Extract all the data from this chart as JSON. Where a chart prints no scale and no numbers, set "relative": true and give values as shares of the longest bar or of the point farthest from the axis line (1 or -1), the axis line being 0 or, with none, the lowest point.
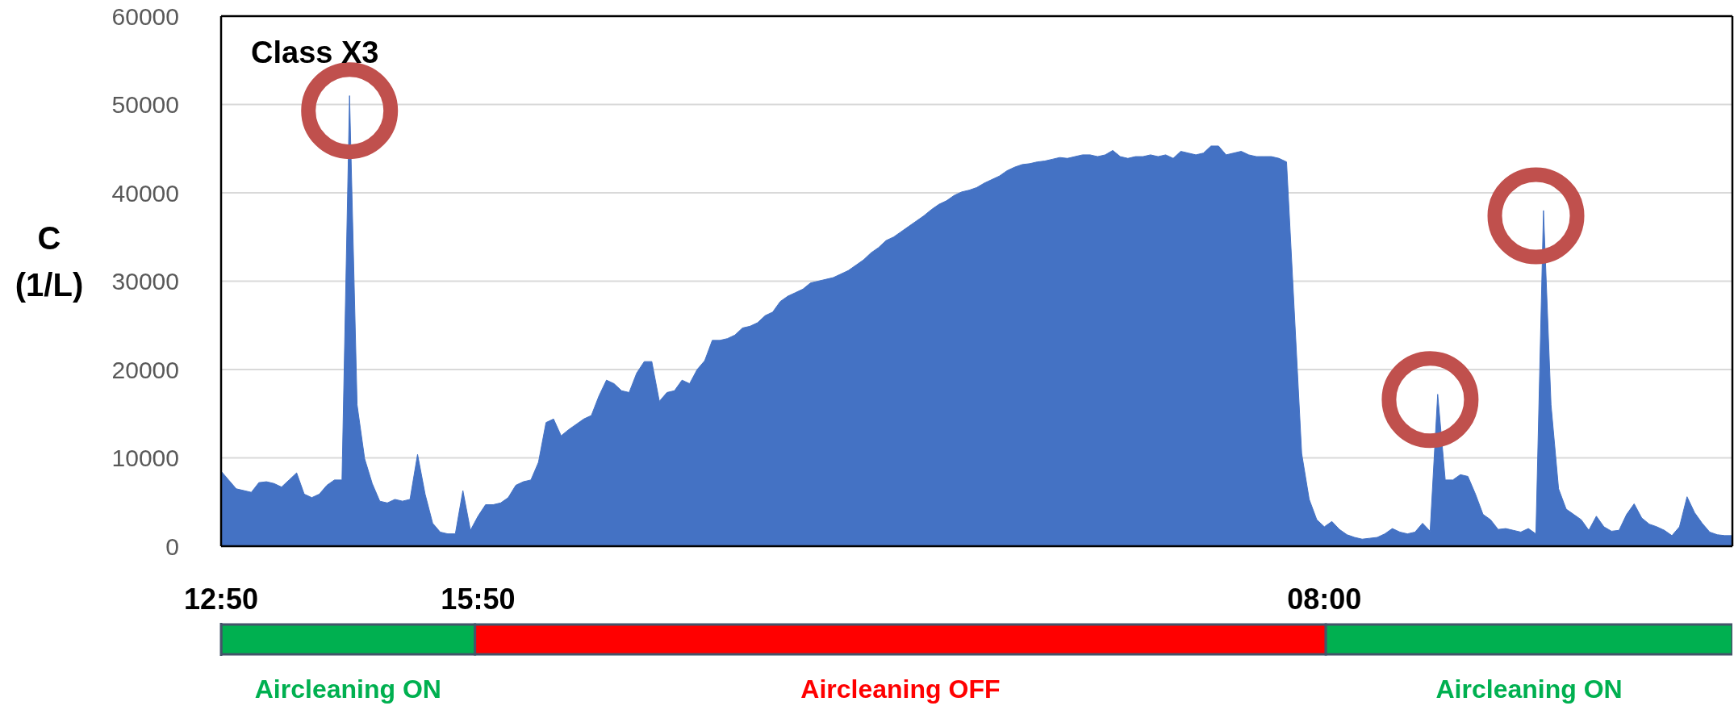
{
  "chart_data": [
    {
      "type": "area",
      "title": "Class X3",
      "ylabel": "C\n(1/L)",
      "categories": [
        "12:50",
        null,
        null,
        null,
        null,
        null,
        null,
        null,
        null,
        null,
        null,
        null,
        null,
        null,
        null,
        null,
        null,
        null,
        null,
        null,
        null,
        null,
        null,
        null,
        null,
        null,
        null,
        null,
        null,
        null,
        null,
        null,
        null,
        null,
        "15:50",
        null,
        null,
        null,
        null,
        null,
        null,
        null,
        null,
        null,
        null,
        null,
        null,
        null,
        null,
        null,
        null,
        null,
        null,
        null,
        null,
        null,
        null,
        null,
        null,
        null,
        null,
        null,
        null,
        null,
        null,
        null,
        null,
        null,
        null,
        null,
        null,
        null,
        null,
        null,
        null,
        null,
        null,
        null,
        null,
        null,
        null,
        null,
        null,
        null,
        null,
        null,
        null,
        null,
        null,
        null,
        null,
        null,
        null,
        null,
        null,
        null,
        null,
        null,
        null,
        null,
        null,
        null,
        null,
        null,
        null,
        null,
        null,
        null,
        null,
        null,
        null,
        null,
        null,
        null,
        null,
        null,
        null,
        null,
        null,
        null,
        null,
        null,
        null,
        null,
        null,
        null,
        null,
        null,
        null,
        null,
        null,
        null,
        null,
        null,
        null,
        null,
        null,
        null,
        null,
        null,
        null,
        null,
        null,
        null,
        null,
        null,
        "08:00",
        null,
        null,
        null,
        null,
        null,
        null,
        null,
        null,
        null,
        null,
        null,
        null,
        null,
        null,
        null,
        null,
        null,
        null,
        null,
        null,
        null,
        null,
        null,
        null,
        null,
        null,
        null,
        null,
        null,
        null,
        null,
        null,
        null,
        null,
        null,
        null,
        null,
        null,
        null,
        null,
        null,
        null,
        null,
        null,
        null,
        null,
        null,
        null,
        null,
        null,
        null,
        null,
        null,
        null
      ],
      "series": [
        {
          "color": "#4472c4",
          "values": [
            8500,
            7500,
            6500,
            6300,
            6100,
            7200,
            7300,
            7100,
            6700,
            7500,
            8300,
            5900,
            5500,
            5900,
            6900,
            7500,
            7500,
            51000,
            16000,
            9900,
            7100,
            5100,
            4900,
            5300,
            5100,
            5300,
            10400,
            5900,
            2600,
            1600,
            1400,
            1400,
            6300,
            1800,
            3400,
            4700,
            4700,
            4900,
            5500,
            6900,
            7300,
            7500,
            9500,
            14000,
            14400,
            12500,
            13200,
            13800,
            14400,
            14800,
            17000,
            18800,
            18400,
            17600,
            17400,
            19600,
            20900,
            20900,
            16400,
            17400,
            17600,
            18800,
            18400,
            20000,
            21000,
            23300,
            23300,
            23500,
            23900,
            24700,
            24900,
            25300,
            26100,
            26500,
            27700,
            28300,
            28700,
            29100,
            29800,
            30000,
            30200,
            30400,
            30800,
            31200,
            31800,
            32400,
            33200,
            33800,
            34600,
            35000,
            35600,
            36200,
            36800,
            37400,
            38100,
            38700,
            39100,
            39700,
            40100,
            40300,
            40600,
            41100,
            41500,
            41900,
            42500,
            42900,
            43200,
            43300,
            43500,
            43600,
            43800,
            44000,
            43900,
            44100,
            44300,
            44300,
            44100,
            44300,
            44800,
            44100,
            43900,
            44100,
            44100,
            44300,
            44100,
            44300,
            43900,
            44700,
            44500,
            44300,
            44500,
            45300,
            45300,
            44300,
            44500,
            44700,
            44300,
            44100,
            44100,
            44100,
            43900,
            43500,
            27000,
            10500,
            5300,
            3000,
            2200,
            2800,
            1900,
            1300,
            1000,
            800,
            900,
            1000,
            1400,
            2000,
            1600,
            1400,
            1600,
            2600,
            1700,
            17200,
            7500,
            7500,
            8100,
            7900,
            5900,
            3600,
            3000,
            1900,
            2000,
            1800,
            1600,
            2000,
            1400,
            38000,
            16000,
            6500,
            4200,
            3600,
            3000,
            1800,
            3400,
            2200,
            1700,
            1800,
            3600,
            4800,
            3200,
            2500,
            2200,
            1800,
            1200,
            2200,
            5600,
            3800,
            2600,
            1600,
            1300,
            1200,
            1200
          ]
        },
        {
          "type": "scatter",
          "color": "#c0504d",
          "marker": "circle",
          "values": [
            null,
            null,
            null,
            null,
            null,
            null,
            null,
            null,
            null,
            null,
            null,
            null,
            null,
            null,
            null,
            null,
            null,
            49300,
            null,
            null,
            null,
            null,
            null,
            null,
            null,
            null,
            null,
            null,
            null,
            null,
            null,
            null,
            null,
            null,
            null,
            null,
            null,
            null,
            null,
            null,
            null,
            null,
            null,
            null,
            null,
            null,
            null,
            null,
            null,
            null,
            null,
            null,
            null,
            null,
            null,
            null,
            null,
            null,
            null,
            null,
            null,
            null,
            null,
            null,
            null,
            null,
            null,
            null,
            null,
            null,
            null,
            null,
            null,
            null,
            null,
            null,
            null,
            null,
            null,
            null,
            null,
            null,
            null,
            null,
            null,
            null,
            null,
            null,
            null,
            null,
            null,
            null,
            null,
            null,
            null,
            null,
            null,
            null,
            null,
            null,
            null,
            null,
            null,
            null,
            null,
            null,
            null,
            null,
            null,
            null,
            null,
            null,
            null,
            null,
            null,
            null,
            null,
            null,
            null,
            null,
            null,
            null,
            null,
            null,
            null,
            null,
            null,
            null,
            null,
            null,
            null,
            null,
            null,
            null,
            null,
            null,
            null,
            null,
            null,
            null,
            null,
            null,
            null,
            null,
            null,
            null,
            null,
            null,
            null,
            null,
            null,
            null,
            null,
            null,
            null,
            null,
            null,
            null,
            null,
            null,
            16600,
            null,
            null,
            null,
            null,
            null,
            null,
            null,
            null,
            null,
            null,
            null,
            null,
            null,
            37400,
            null,
            null,
            null,
            null,
            null,
            null,
            null,
            null,
            null,
            null,
            null,
            null,
            null,
            null,
            null,
            null,
            null,
            null,
            null,
            null,
            null,
            null,
            null,
            null,
            null,
            null
          ]
        }
      ],
      "ylim": [
        0,
        60000
      ],
      "yticks": [
        0,
        10000,
        20000,
        30000,
        40000,
        50000,
        60000
      ],
      "grid": "y"
    },
    {
      "type": "bar",
      "orientation": "horizontal",
      "stacked": true,
      "relative": true,
      "categories": [
        null
      ],
      "series": [
        {
          "name": "Aircleaning ON",
          "color": "#00b050",
          "values": [
            0.168
          ]
        },
        {
          "name": "Aircleaning OFF",
          "color": "#ff0000",
          "values": [
            0.563
          ]
        },
        {
          "name": "Aircleaning ON",
          "color": "#00b050",
          "values": [
            0.269
          ]
        }
      ]
    }
  ]
}
